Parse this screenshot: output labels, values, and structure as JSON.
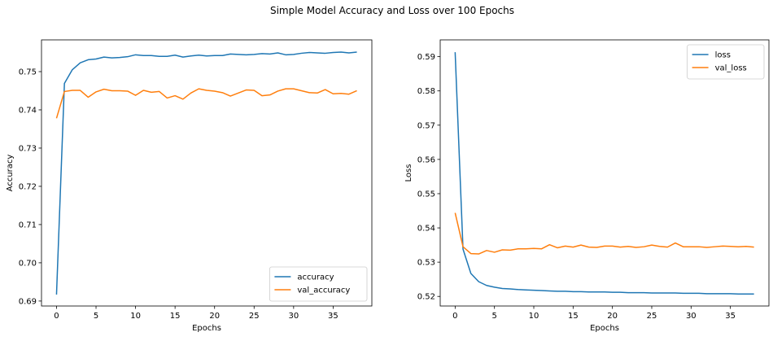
{
  "figure": {
    "suptitle": "Simple Model Accuracy and Loss over 100 Epochs"
  },
  "chart_data": [
    {
      "type": "line",
      "xlabel": "Epochs",
      "ylabel": "Accuracy",
      "xlim": [
        -1.9,
        39.9
      ],
      "ylim": [
        0.6887,
        0.7583
      ],
      "xticks": [
        0,
        5,
        10,
        15,
        20,
        25,
        30,
        35
      ],
      "yticks": [
        0.69,
        0.7,
        0.71,
        0.72,
        0.73,
        0.74,
        0.75
      ],
      "ytick_labels": [
        "0.69",
        "0.70",
        "0.71",
        "0.72",
        "0.73",
        "0.74",
        "0.75"
      ],
      "legend_position": "lower right",
      "grid": false,
      "series": [
        {
          "name": "accuracy",
          "color": "#1f77b4",
          "x": [
            0,
            1,
            2,
            3,
            4,
            5,
            6,
            7,
            8,
            9,
            10,
            11,
            12,
            13,
            14,
            15,
            16,
            17,
            18,
            19,
            20,
            21,
            22,
            23,
            24,
            25,
            26,
            27,
            28,
            29,
            30,
            31,
            32,
            33,
            34,
            35,
            36,
            37,
            38
          ],
          "values": [
            0.6917,
            0.7469,
            0.7505,
            0.7523,
            0.7531,
            0.7533,
            0.7538,
            0.7536,
            0.7537,
            0.7539,
            0.7544,
            0.7542,
            0.7542,
            0.754,
            0.754,
            0.7543,
            0.7538,
            0.7541,
            0.7543,
            0.7541,
            0.7542,
            0.7542,
            0.7546,
            0.7545,
            0.7544,
            0.7545,
            0.7547,
            0.7546,
            0.7549,
            0.7544,
            0.7545,
            0.7548,
            0.755,
            0.7549,
            0.7548,
            0.755,
            0.7551,
            0.7549,
            0.7551
          ]
        },
        {
          "name": "val_accuracy",
          "color": "#ff7f0e",
          "x": [
            0,
            1,
            2,
            3,
            4,
            5,
            6,
            7,
            8,
            9,
            10,
            11,
            12,
            13,
            14,
            15,
            16,
            17,
            18,
            19,
            20,
            21,
            22,
            23,
            24,
            25,
            26,
            27,
            28,
            29,
            30,
            31,
            32,
            33,
            34,
            35,
            36,
            37,
            38
          ],
          "values": [
            0.7378,
            0.7448,
            0.7451,
            0.7451,
            0.7433,
            0.7447,
            0.7454,
            0.745,
            0.745,
            0.7449,
            0.7438,
            0.7451,
            0.7446,
            0.7448,
            0.7431,
            0.7437,
            0.7428,
            0.7444,
            0.7455,
            0.7451,
            0.7449,
            0.7445,
            0.7436,
            0.7444,
            0.7452,
            0.7451,
            0.7437,
            0.7439,
            0.7449,
            0.7455,
            0.7455,
            0.745,
            0.7445,
            0.7444,
            0.7453,
            0.7442,
            0.7443,
            0.7441,
            0.745
          ]
        }
      ]
    },
    {
      "type": "line",
      "xlabel": "Epochs",
      "ylabel": "Loss",
      "xlim": [
        -1.9,
        39.9
      ],
      "ylim": [
        0.5172,
        0.5949
      ],
      "xticks": [
        0,
        5,
        10,
        15,
        20,
        25,
        30,
        35
      ],
      "yticks": [
        0.52,
        0.53,
        0.54,
        0.55,
        0.56,
        0.57,
        0.58,
        0.59
      ],
      "ytick_labels": [
        "0.52",
        "0.53",
        "0.54",
        "0.55",
        "0.56",
        "0.57",
        "0.58",
        "0.59"
      ],
      "legend_position": "upper right",
      "grid": false,
      "series": [
        {
          "name": "loss",
          "color": "#1f77b4",
          "x": [
            0,
            1,
            2,
            3,
            4,
            5,
            6,
            7,
            8,
            9,
            10,
            11,
            12,
            13,
            14,
            15,
            16,
            17,
            18,
            19,
            20,
            21,
            22,
            23,
            24,
            25,
            26,
            27,
            28,
            29,
            30,
            31,
            32,
            33,
            34,
            35,
            36,
            37,
            38
          ],
          "values": [
            0.5913,
            0.5338,
            0.5267,
            0.5243,
            0.5232,
            0.5227,
            0.5223,
            0.5222,
            0.522,
            0.5219,
            0.5218,
            0.5217,
            0.5216,
            0.5215,
            0.5215,
            0.5214,
            0.5214,
            0.5213,
            0.5213,
            0.5213,
            0.5212,
            0.5212,
            0.5211,
            0.5211,
            0.5211,
            0.521,
            0.521,
            0.521,
            0.521,
            0.5209,
            0.5209,
            0.5209,
            0.5208,
            0.5208,
            0.5208,
            0.5208,
            0.5207,
            0.5207,
            0.5207
          ]
        },
        {
          "name": "val_loss",
          "color": "#ff7f0e",
          "x": [
            0,
            1,
            2,
            3,
            4,
            5,
            6,
            7,
            8,
            9,
            10,
            11,
            12,
            13,
            14,
            15,
            16,
            17,
            18,
            19,
            20,
            21,
            22,
            23,
            24,
            25,
            26,
            27,
            28,
            29,
            30,
            31,
            32,
            33,
            34,
            35,
            36,
            37,
            38
          ],
          "values": [
            0.5444,
            0.5345,
            0.5325,
            0.5324,
            0.5334,
            0.5329,
            0.5336,
            0.5335,
            0.5339,
            0.5339,
            0.534,
            0.5339,
            0.5351,
            0.5342,
            0.5347,
            0.5344,
            0.535,
            0.5344,
            0.5343,
            0.5347,
            0.5347,
            0.5344,
            0.5346,
            0.5343,
            0.5345,
            0.535,
            0.5346,
            0.5344,
            0.5356,
            0.5345,
            0.5345,
            0.5345,
            0.5343,
            0.5345,
            0.5347,
            0.5346,
            0.5345,
            0.5346,
            0.5344
          ]
        }
      ]
    }
  ]
}
